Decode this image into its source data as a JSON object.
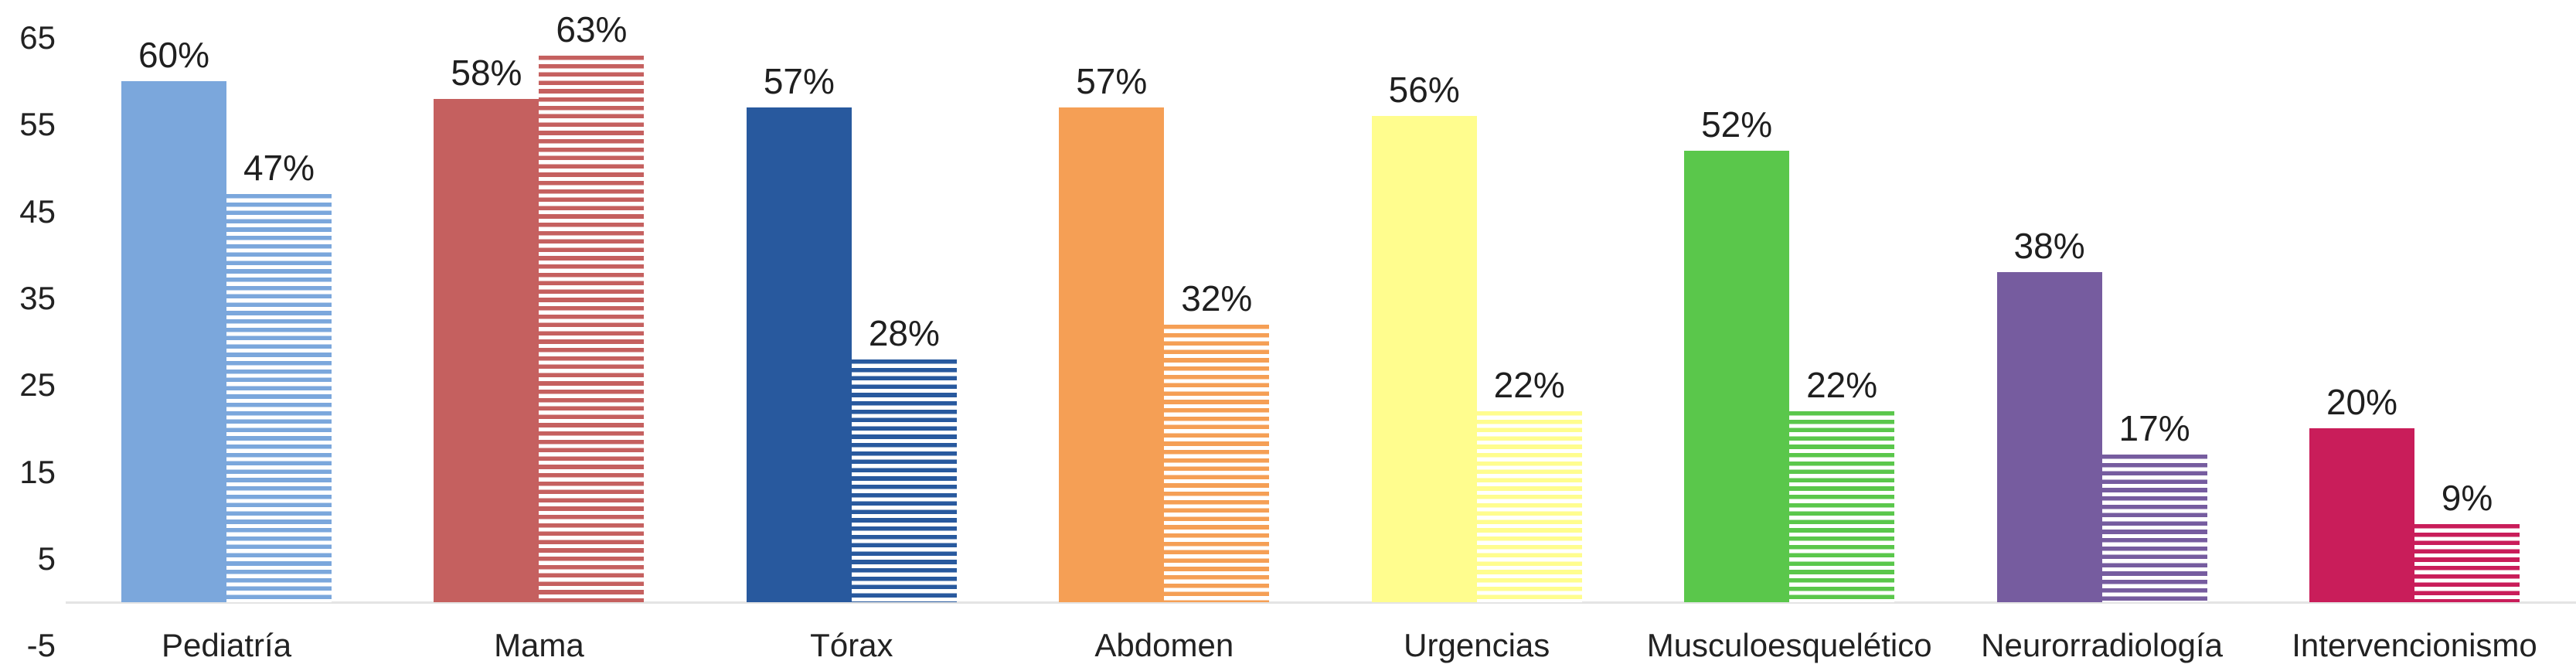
{
  "chart_data": {
    "type": "bar",
    "title": "",
    "categories": [
      "Pediatría",
      "Mama",
      "Tórax",
      "Abdomen",
      "Urgencias",
      "Musculoesquelético",
      "Neurorradiología",
      "Intervencionismo"
    ],
    "series": [
      {
        "style": "solid",
        "values": [
          60,
          58,
          57,
          57,
          56,
          52,
          38,
          20
        ]
      },
      {
        "style": "striped",
        "values": [
          47,
          63,
          28,
          32,
          22,
          22,
          17,
          9
        ]
      }
    ],
    "data_label_format": "{v}%",
    "y_ticks": [
      65,
      55,
      45,
      35,
      25,
      15,
      5,
      -5
    ],
    "ylim": [
      -5,
      65
    ],
    "baseline_value": 0,
    "grid": false,
    "legend": "none",
    "category_colors": [
      "#7BA7DC",
      "#C5605F",
      "#28599E",
      "#F59F55",
      "#FFFD8E",
      "#5AC74B",
      "#765C9F",
      "#C91D5A"
    ]
  },
  "colors": {
    "text": "#1f1f1f",
    "axis_line": "#e4e4e4",
    "background": "#ffffff"
  }
}
